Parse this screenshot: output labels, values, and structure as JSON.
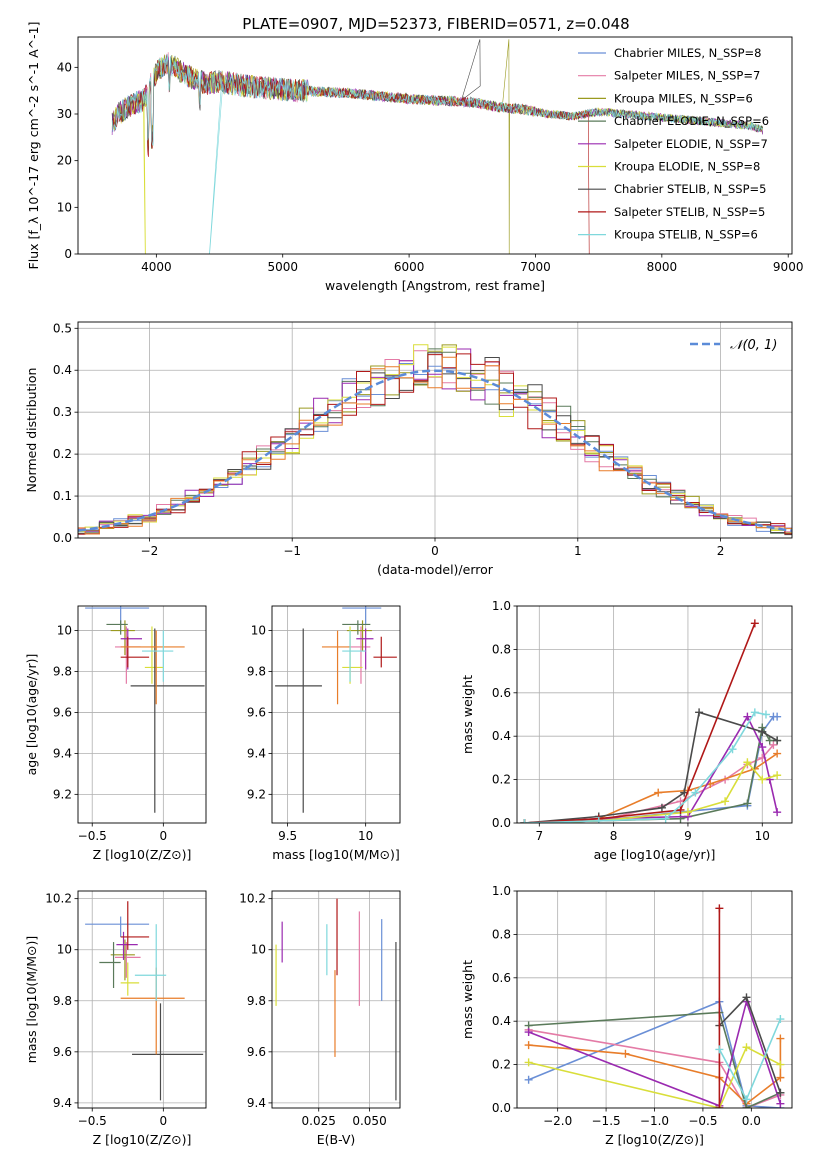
{
  "figure": {
    "title": "PLATE=0907, MJD=52373, FIBERID=0571, z=0.048"
  },
  "chart_data": [
    {
      "id": "spectrum",
      "type": "line",
      "xlabel": "wavelength [Angstrom, rest frame]",
      "ylabel": "Flux [f_λ 10^-17 erg cm^-2 s^-1 A^-1]",
      "xlim": [
        3380,
        9030
      ],
      "ylim": [
        0,
        46.5
      ],
      "xticks": [
        4000,
        5000,
        6000,
        7000,
        8000,
        9000
      ],
      "yticks": [
        0,
        10,
        20,
        30,
        40
      ],
      "legend_position": "upper-right",
      "continuum_x": [
        3650,
        3700,
        3800,
        3900,
        4000,
        4100,
        4200,
        4300,
        4400,
        4500,
        4700,
        4900,
        5100,
        5300,
        5500,
        5700,
        5900,
        6100,
        6300,
        6500,
        6700,
        6900,
        7100,
        7300,
        7500,
        7700,
        7900,
        8100,
        8300,
        8500,
        8700,
        8800
      ],
      "continuum_y": [
        28,
        30,
        32,
        33,
        39,
        41,
        39,
        37.5,
        36.5,
        37,
        36,
        35.5,
        35,
        34.8,
        34.5,
        34,
        33.5,
        33,
        32.8,
        32.5,
        31.5,
        31,
        30,
        29.5,
        30.5,
        30,
        29.5,
        29,
        28.5,
        28,
        27.5,
        26.5
      ],
      "series": [
        {
          "name": "Chabrier MILES, N_SSP=8",
          "color": "#6a8fd6"
        },
        {
          "name": "Salpeter MILES, N_SSP=7",
          "color": "#e47ba6"
        },
        {
          "name": "Kroupa MILES, N_SSP=6",
          "color": "#9a9a20"
        },
        {
          "name": "Chabrier ELODIE, N_SSP=6",
          "color": "#5a7a5a"
        },
        {
          "name": "Salpeter ELODIE, N_SSP=7",
          "color": "#9a2ab0"
        },
        {
          "name": "Kroupa ELODIE, N_SSP=8",
          "color": "#d9de3a"
        },
        {
          "name": "Chabrier STELIB, N_SSP=5",
          "color": "#4a4a4a"
        },
        {
          "name": "Salpeter STELIB, N_SSP=5",
          "color": "#b01818"
        },
        {
          "name": "Kroupa STELIB, N_SSP=6",
          "color": "#7fd8dc"
        }
      ]
    },
    {
      "id": "residuals",
      "type": "line",
      "xlabel": "(data-model)/error",
      "ylabel": "Normed distribution",
      "xlim": [
        -2.5,
        2.5
      ],
      "ylim": [
        0,
        0.515
      ],
      "xticks": [
        -2,
        -1,
        0,
        1,
        2
      ],
      "yticks": [
        0.0,
        0.1,
        0.2,
        0.3,
        0.4,
        0.5
      ],
      "grid": true,
      "legend_position": "upper-right",
      "legend": [
        {
          "name": "𝒩(0, 1)",
          "style": "dashed",
          "color": "#5b8bd8"
        }
      ],
      "hist_colors": [
        "#6a8fd6",
        "#e47ba6",
        "#9a9a20",
        "#5a7a5a",
        "#9a2ab0",
        "#d9de3a",
        "#4a4a4a",
        "#b01818",
        "#e87d2a"
      ]
    },
    {
      "id": "age_vs_Z",
      "type": "scatter",
      "xlabel": "Z [log10(Z/Z⊙)]",
      "ylabel": "age [log10(age/yr)]",
      "xlim": [
        -0.6,
        0.3
      ],
      "ylim": [
        9.06,
        10.12
      ],
      "xticks": [
        -0.5,
        0.0
      ],
      "yticks": [
        9.2,
        9.4,
        9.6,
        9.8,
        10.0
      ],
      "grid": true,
      "points": [
        {
          "color": "#6a8fd6",
          "x": -0.3,
          "xerr": [
            0.25,
            0.2
          ],
          "y": 10.11,
          "yerr": [
            0.08,
            0.02
          ]
        },
        {
          "color": "#e47ba6",
          "x": -0.26,
          "xerr": [
            0.08,
            0.1
          ],
          "y": 9.92,
          "yerr": [
            0.18,
            0.1
          ]
        },
        {
          "color": "#9a9a20",
          "x": -0.27,
          "xerr": [
            0.1,
            0.07
          ],
          "y": 10.0,
          "yerr": [
            0.12,
            0.05
          ]
        },
        {
          "color": "#5a7a5a",
          "x": -0.3,
          "xerr": [
            0.1,
            0.05
          ],
          "y": 10.03,
          "yerr": [
            0.05,
            0.02
          ]
        },
        {
          "color": "#9a2ab0",
          "x": -0.25,
          "xerr": [
            0.05,
            0.1
          ],
          "y": 9.96,
          "yerr": [
            0.15,
            0.05
          ]
        },
        {
          "color": "#d9de3a",
          "x": -0.08,
          "xerr": [
            0.05,
            0.08
          ],
          "y": 9.82,
          "yerr": [
            0.08,
            0.2
          ]
        },
        {
          "color": "#4a4a4a",
          "x": -0.06,
          "xerr": [
            0.17,
            0.35
          ],
          "y": 9.73,
          "yerr": [
            0.62,
            0.28
          ]
        },
        {
          "color": "#b01818",
          "x": -0.25,
          "xerr": [
            0.05,
            0.15
          ],
          "y": 9.87,
          "yerr": [
            0.05,
            0.1
          ]
        },
        {
          "color": "#e87d2a",
          "x": -0.05,
          "xerr": [
            0.25,
            0.2
          ],
          "y": 9.92,
          "yerr": [
            0.28,
            0.08
          ]
        },
        {
          "color": "#7fd8dc",
          "x": 0.0,
          "xerr": [
            0.15,
            0.07
          ],
          "y": 9.9,
          "yerr": [
            0.15,
            0.1
          ]
        }
      ]
    },
    {
      "id": "age_vs_mass",
      "type": "scatter",
      "xlabel": "mass [log10(M/M⊙)]",
      "ylabel": "",
      "xlim": [
        9.4,
        10.22
      ],
      "ylim": [
        9.06,
        10.12
      ],
      "xticks": [
        9.5,
        10.0
      ],
      "yticks": [
        9.2,
        9.4,
        9.6,
        9.8,
        10.0
      ],
      "grid": true,
      "points": [
        {
          "color": "#6a8fd6",
          "x": 10.0,
          "xerr": [
            0.15,
            0.1
          ],
          "y": 10.11,
          "yerr": [
            0.08,
            0.02
          ]
        },
        {
          "color": "#e47ba6",
          "x": 9.97,
          "xerr": [
            0.08,
            0.06
          ],
          "y": 9.92,
          "yerr": [
            0.18,
            0.1
          ]
        },
        {
          "color": "#9a9a20",
          "x": 9.98,
          "xerr": [
            0.1,
            0.06
          ],
          "y": 10.0,
          "yerr": [
            0.1,
            0.05
          ]
        },
        {
          "color": "#5a7a5a",
          "x": 9.95,
          "xerr": [
            0.1,
            0.08
          ],
          "y": 10.03,
          "yerr": [
            0.05,
            0.02
          ]
        },
        {
          "color": "#9a2ab0",
          "x": 10.0,
          "xerr": [
            0.06,
            0.05
          ],
          "y": 9.96,
          "yerr": [
            0.15,
            0.05
          ]
        },
        {
          "color": "#d9de3a",
          "x": 9.9,
          "xerr": [
            0.05,
            0.08
          ],
          "y": 9.82,
          "yerr": [
            0.08,
            0.2
          ]
        },
        {
          "color": "#4a4a4a",
          "x": 9.6,
          "xerr": [
            0.18,
            0.12
          ],
          "y": 9.73,
          "yerr": [
            0.62,
            0.28
          ]
        },
        {
          "color": "#b01818",
          "x": 10.1,
          "xerr": [
            0.05,
            0.1
          ],
          "y": 9.87,
          "yerr": [
            0.05,
            0.1
          ]
        },
        {
          "color": "#e87d2a",
          "x": 9.82,
          "xerr": [
            0.1,
            0.08
          ],
          "y": 9.92,
          "yerr": [
            0.28,
            0.08
          ]
        },
        {
          "color": "#7fd8dc",
          "x": 9.9,
          "xerr": [
            0.05,
            0.1
          ],
          "y": 9.9,
          "yerr": [
            0.15,
            0.1
          ]
        }
      ]
    },
    {
      "id": "weight_vs_age",
      "type": "line",
      "xlabel": "age [log10(age/yr)]",
      "ylabel": "mass weight",
      "xlim": [
        6.7,
        10.4
      ],
      "ylim": [
        0,
        1.0
      ],
      "xticks": [
        7,
        8,
        9,
        10
      ],
      "yticks": [
        0.0,
        0.2,
        0.4,
        0.6,
        0.8,
        1.0
      ],
      "grid": true,
      "series": [
        {
          "color": "#6a8fd6",
          "x": [
            6.8,
            7.8,
            8.9,
            9.8,
            10.0,
            10.15,
            10.2
          ],
          "y": [
            0.0,
            0.01,
            0.05,
            0.08,
            0.42,
            0.49,
            0.49
          ]
        },
        {
          "color": "#e47ba6",
          "x": [
            6.8,
            7.8,
            8.9,
            9.5,
            9.8,
            10.0,
            10.15
          ],
          "y": [
            0.0,
            0.01,
            0.1,
            0.2,
            0.27,
            0.3,
            0.36
          ]
        },
        {
          "color": "#e87d2a",
          "x": [
            6.8,
            7.8,
            8.6,
            9.0,
            9.3,
            9.9,
            10.2
          ],
          "y": [
            0.0,
            0.02,
            0.14,
            0.15,
            0.18,
            0.25,
            0.32
          ]
        },
        {
          "color": "#5a7a5a",
          "x": [
            6.8,
            7.8,
            8.9,
            9.8,
            10.0,
            10.1,
            10.2
          ],
          "y": [
            0.0,
            0.01,
            0.02,
            0.09,
            0.44,
            0.38,
            0.38
          ]
        },
        {
          "color": "#9a2ab0",
          "x": [
            6.8,
            7.8,
            9.0,
            9.8,
            10.0,
            10.1,
            10.2
          ],
          "y": [
            0.0,
            0.02,
            0.03,
            0.49,
            0.35,
            0.2,
            0.05
          ]
        },
        {
          "color": "#d9de3a",
          "x": [
            6.8,
            7.8,
            9.0,
            9.5,
            9.8,
            10.0,
            10.2
          ],
          "y": [
            0.0,
            0.01,
            0.05,
            0.1,
            0.28,
            0.2,
            0.22
          ]
        },
        {
          "color": "#4a4a4a",
          "x": [
            6.8,
            7.8,
            8.65,
            8.95,
            9.15,
            10.0,
            10.2
          ],
          "y": [
            0.0,
            0.03,
            0.07,
            0.14,
            0.51,
            0.42,
            0.38
          ]
        },
        {
          "color": "#b01818",
          "x": [
            6.8,
            7.8,
            8.9,
            9.9
          ],
          "y": [
            0.0,
            0.02,
            0.06,
            0.92
          ]
        },
        {
          "color": "#7fd8dc",
          "x": [
            6.8,
            7.8,
            8.7,
            9.1,
            9.6,
            9.9,
            10.05
          ],
          "y": [
            0.0,
            0.01,
            0.02,
            0.14,
            0.34,
            0.51,
            0.5
          ]
        }
      ]
    },
    {
      "id": "mass_vs_Z",
      "type": "scatter",
      "xlabel": "Z [log10(Z/Z⊙)]",
      "ylabel": "mass [log10(M/M⊙)]",
      "xlim": [
        -0.6,
        0.3
      ],
      "ylim": [
        9.38,
        10.23
      ],
      "xticks": [
        -0.5,
        0.0
      ],
      "yticks": [
        9.4,
        9.6,
        9.8,
        10.0,
        10.2
      ],
      "grid": true,
      "points": [
        {
          "color": "#6a8fd6",
          "x": -0.3,
          "xerr": [
            0.25,
            0.2
          ],
          "y": 10.1,
          "yerr": [
            0.05,
            0.03
          ]
        },
        {
          "color": "#e47ba6",
          "x": -0.26,
          "xerr": [
            0.08,
            0.1
          ],
          "y": 9.97,
          "yerr": [
            0.08,
            0.06
          ]
        },
        {
          "color": "#9a9a20",
          "x": -0.27,
          "xerr": [
            0.1,
            0.07
          ],
          "y": 9.98,
          "yerr": [
            0.1,
            0.06
          ]
        },
        {
          "color": "#5a7a5a",
          "x": -0.35,
          "xerr": [
            0.1,
            0.05
          ],
          "y": 9.95,
          "yerr": [
            0.1,
            0.08
          ]
        },
        {
          "color": "#9a2ab0",
          "x": -0.28,
          "xerr": [
            0.05,
            0.1
          ],
          "y": 10.02,
          "yerr": [
            0.06,
            0.05
          ]
        },
        {
          "color": "#d9de3a",
          "x": -0.25,
          "xerr": [
            0.05,
            0.08
          ],
          "y": 9.87,
          "yerr": [
            0.05,
            0.08
          ]
        },
        {
          "color": "#4a4a4a",
          "x": -0.02,
          "xerr": [
            0.2,
            0.3
          ],
          "y": 9.59,
          "yerr": [
            0.18,
            0.2
          ]
        },
        {
          "color": "#b01818",
          "x": -0.25,
          "xerr": [
            0.05,
            0.15
          ],
          "y": 10.05,
          "yerr": [
            0.05,
            0.14
          ]
        },
        {
          "color": "#e87d2a",
          "x": -0.05,
          "xerr": [
            0.25,
            0.2
          ],
          "y": 9.81,
          "yerr": [
            0.22,
            0.12
          ]
        },
        {
          "color": "#7fd8dc",
          "x": -0.05,
          "xerr": [
            0.15,
            0.07
          ],
          "y": 9.9,
          "yerr": [
            0.1,
            0.2
          ]
        }
      ]
    },
    {
      "id": "mass_vs_EBV",
      "type": "scatter",
      "xlabel": "E(B-V)",
      "ylabel": "",
      "xlim": [
        0.002,
        0.065
      ],
      "ylim": [
        9.38,
        10.23
      ],
      "xticks": [
        0.025,
        0.05
      ],
      "yticks": [
        9.4,
        9.6,
        9.8,
        10.0,
        10.2
      ],
      "grid": true,
      "points": [
        {
          "color": "#d9de3a",
          "x": 0.004,
          "y": 9.9,
          "yerr": [
            0.12,
            0.12
          ]
        },
        {
          "color": "#9a2ab0",
          "x": 0.007,
          "y": 10.03,
          "yerr": [
            0.08,
            0.08
          ]
        },
        {
          "color": "#7fd8dc",
          "x": 0.029,
          "y": 10.0,
          "yerr": [
            0.1,
            0.1
          ]
        },
        {
          "color": "#e87d2a",
          "x": 0.033,
          "y": 9.8,
          "yerr": [
            0.22,
            0.12
          ]
        },
        {
          "color": "#b01818",
          "x": 0.034,
          "y": 10.05,
          "yerr": [
            0.15,
            0.15
          ]
        },
        {
          "color": "#e47ba6",
          "x": 0.045,
          "y": 9.97,
          "yerr": [
            0.19,
            0.18
          ]
        },
        {
          "color": "#6a8fd6",
          "x": 0.056,
          "y": 9.95,
          "yerr": [
            0.15,
            0.17
          ]
        },
        {
          "color": "#4a4a4a",
          "x": 0.063,
          "y": 9.72,
          "yerr": [
            0.31,
            0.31
          ]
        }
      ]
    },
    {
      "id": "weight_vs_Z",
      "type": "line",
      "xlabel": "Z [log10(Z/Z⊙)]",
      "ylabel": "mass weight",
      "xlim": [
        -2.42,
        0.42
      ],
      "ylim": [
        0,
        1.0
      ],
      "xticks": [
        -2.0,
        -1.5,
        -1.0,
        -0.5,
        0.0
      ],
      "yticks": [
        0.0,
        0.2,
        0.4,
        0.6,
        0.8,
        1.0
      ],
      "grid": true,
      "series": [
        {
          "color": "#6a8fd6",
          "x": [
            -2.3,
            -0.33,
            -0.05,
            0.3
          ],
          "y": [
            0.13,
            0.49,
            0.01,
            0.0
          ]
        },
        {
          "color": "#e47ba6",
          "x": [
            -2.3,
            -0.33,
            -0.05,
            0.3
          ],
          "y": [
            0.36,
            0.21,
            0.0,
            0.06
          ]
        },
        {
          "color": "#e87d2a",
          "x": [
            -2.3,
            -1.3,
            -0.33,
            -0.05,
            0.3,
            0.3
          ],
          "y": [
            0.29,
            0.25,
            0.14,
            0.02,
            0.14,
            0.32
          ]
        },
        {
          "color": "#5a7a5a",
          "x": [
            -2.3,
            -0.33,
            -0.05,
            0.3
          ],
          "y": [
            0.38,
            0.44,
            0.0,
            0.07
          ]
        },
        {
          "color": "#9a2ab0",
          "x": [
            -2.3,
            -0.33,
            -0.05,
            0.3
          ],
          "y": [
            0.35,
            0.01,
            0.49,
            0.02
          ]
        },
        {
          "color": "#d9de3a",
          "x": [
            -2.3,
            -0.33,
            -0.05,
            0.3
          ],
          "y": [
            0.21,
            0.0,
            0.28,
            0.2
          ]
        },
        {
          "color": "#4a4a4a",
          "x": [
            -0.33,
            -0.05,
            0.3
          ],
          "y": [
            0.38,
            0.51,
            0.07
          ]
        },
        {
          "color": "#b01818",
          "x": [
            -0.33,
            -0.33
          ],
          "y": [
            0.0,
            0.92
          ]
        },
        {
          "color": "#7fd8dc",
          "x": [
            -0.33,
            -0.05,
            0.3
          ],
          "y": [
            0.27,
            0.04,
            0.41
          ]
        }
      ]
    }
  ]
}
